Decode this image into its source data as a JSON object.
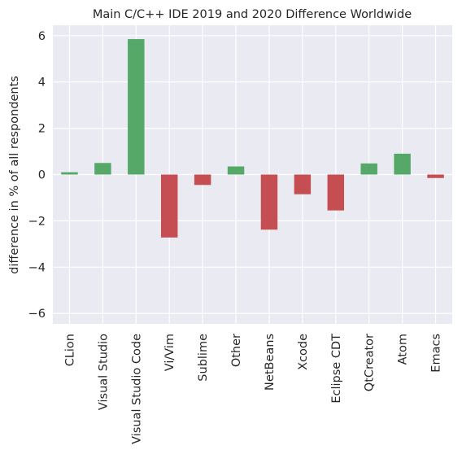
{
  "chart_data": {
    "type": "bar",
    "title": "Main C/C++ IDE 2019 and 2020 Difference Worldwide",
    "xlabel": "",
    "ylabel": "difference in % of all respondents",
    "categories": [
      "CLion",
      "Visual Studio",
      "Visual Studio Code",
      "Vi/Vim",
      "Sublime",
      "Other",
      "NetBeans",
      "Xcode",
      "Eclipse CDT",
      "QtCreator",
      "Atom",
      "Emacs"
    ],
    "values": [
      0.1,
      0.5,
      5.85,
      -2.72,
      -0.45,
      0.35,
      -2.38,
      -0.85,
      -1.55,
      0.48,
      0.9,
      -0.15
    ],
    "ylim": [
      -6.45,
      6.45
    ],
    "yticks": [
      -6,
      -4,
      -2,
      0,
      2,
      4,
      6
    ],
    "ytick_labels": [
      "−6",
      "−4",
      "−2",
      "0",
      "2",
      "4",
      "6"
    ],
    "grid": true,
    "colors": {
      "positive": "#55a868",
      "negative": "#c44e52",
      "background": "#eaeaf2",
      "grid": "#ffffff"
    }
  }
}
